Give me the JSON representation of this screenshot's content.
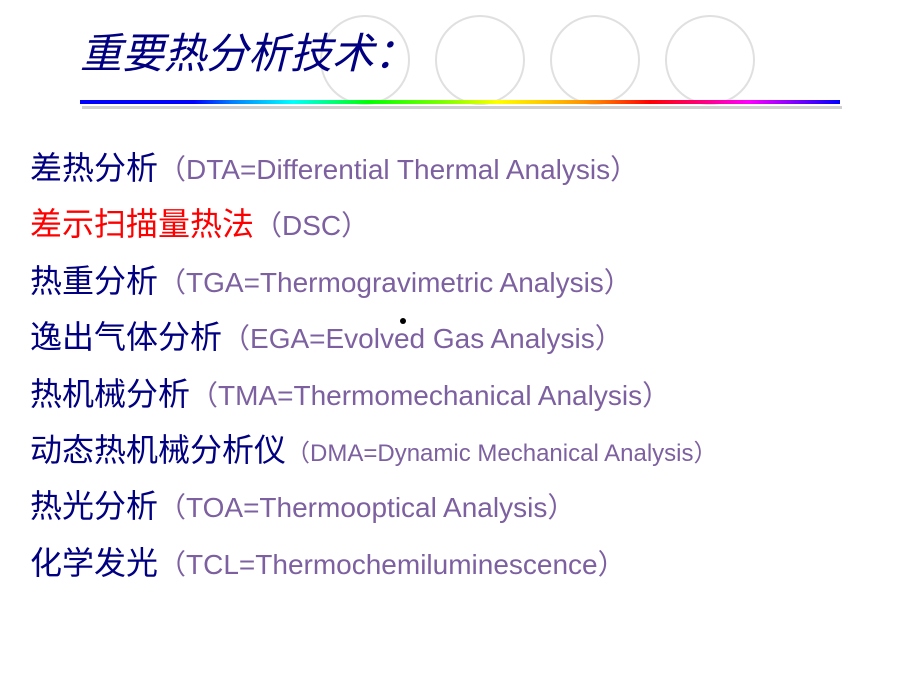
{
  "title": "重要热分析技术：",
  "circles": {
    "count": 4,
    "spacing": 115,
    "border_color": "#e0e0e0"
  },
  "items": [
    {
      "cn": "差热分析",
      "en": "（DTA=Differential Thermal Analysis）",
      "cn_color": "#000080",
      "en_size": "normal"
    },
    {
      "cn": "差示扫描量热法",
      "en": "（DSC）",
      "cn_color": "#ff0000",
      "en_size": "normal"
    },
    {
      "cn": "热重分析",
      "en": "（TGA=Thermogravimetric Analysis）",
      "cn_color": "#000080",
      "en_size": "normal"
    },
    {
      "cn": "逸出气体分析",
      "en": "（EGA=Evolved Gas Analysis）",
      "cn_color": "#000080",
      "en_size": "normal"
    },
    {
      "cn": "热机械分析",
      "en": "（TMA=Thermomechanical Analysis）",
      "cn_color": "#000080",
      "en_size": "normal"
    },
    {
      "cn": "动态热机械分析仪",
      "en": "（DMA=Dynamic Mechanical Analysis）",
      "cn_color": "#000080",
      "en_size": "small"
    },
    {
      "cn": "热光分析",
      "en": "（TOA=Thermooptical Analysis）",
      "cn_color": "#000080",
      "en_size": "normal"
    },
    {
      "cn": "化学发光",
      "en": "（TCL=Thermochemiluminescence）",
      "cn_color": "#000080",
      "en_size": "normal"
    }
  ]
}
